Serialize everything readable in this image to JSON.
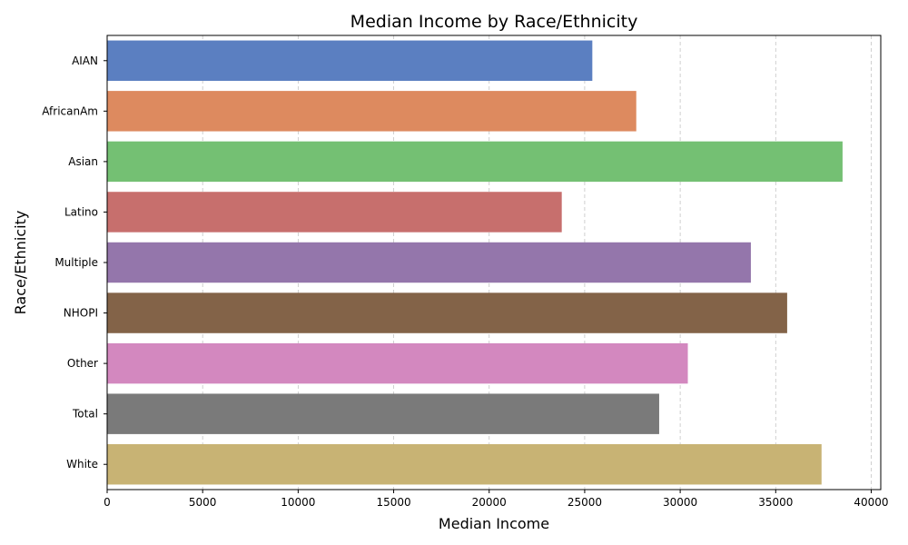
{
  "chart_data": {
    "type": "bar",
    "orientation": "horizontal",
    "title": "Median Income by Race/Ethnicity",
    "xlabel": "Median Income",
    "ylabel": "Race/Ethnicity",
    "categories": [
      "AIAN",
      "AfricanAm",
      "Asian",
      "Latino",
      "Multiple",
      "NHOPI",
      "Other",
      "Total",
      "White"
    ],
    "values": [
      25400,
      27700,
      38500,
      23800,
      33700,
      35600,
      30400,
      28900,
      37400
    ],
    "colors": [
      "#5b7fc1",
      "#dd8a5f",
      "#74c073",
      "#c76f6d",
      "#9476ab",
      "#836348",
      "#d388bf",
      "#7a7a7a",
      "#c8b374"
    ],
    "xlim": [
      0,
      40500
    ],
    "xticks": [
      0,
      5000,
      10000,
      15000,
      20000,
      25000,
      30000,
      35000,
      40000
    ],
    "grid": "vertical-dashed",
    "legend": "none"
  }
}
